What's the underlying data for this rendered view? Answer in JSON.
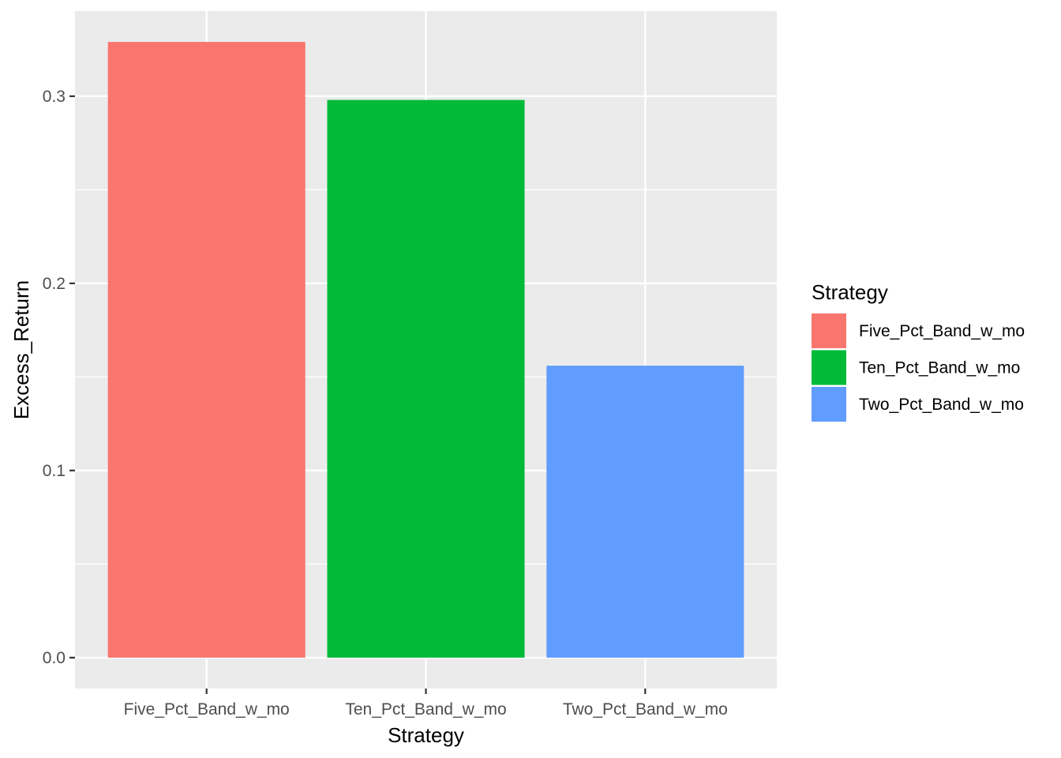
{
  "chart_data": {
    "type": "bar",
    "xlabel": "Strategy",
    "ylabel": "Excess_Return",
    "categories": [
      "Five_Pct_Band_w_mo",
      "Ten_Pct_Band_w_mo",
      "Two_Pct_Band_w_mo"
    ],
    "values": [
      0.329,
      0.298,
      0.156
    ],
    "colors": [
      "#F8766D",
      "#00BA38",
      "#619CFF"
    ],
    "ylim": [
      -0.0165,
      0.3455
    ],
    "yticks": [
      0.0,
      0.1,
      0.2,
      0.3
    ],
    "ytick_labels": [
      "0.0",
      "0.1",
      "0.2",
      "0.3"
    ],
    "grid": true,
    "panel_background": "#EBEBEB",
    "grid_color": "#FFFFFF",
    "legend": {
      "title": "Strategy",
      "position": "right",
      "entries": [
        "Five_Pct_Band_w_mo",
        "Ten_Pct_Band_w_mo",
        "Two_Pct_Band_w_mo"
      ]
    }
  }
}
